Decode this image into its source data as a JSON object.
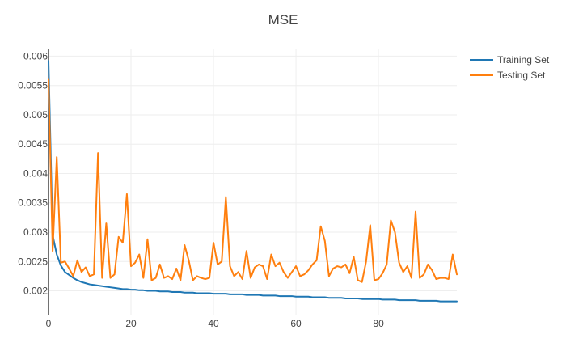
{
  "chart_data": {
    "type": "line",
    "title": "MSE",
    "xlabel": "",
    "ylabel": "",
    "xlim": [
      0,
      99
    ],
    "ylim": [
      0.00158,
      0.00613
    ],
    "x_ticks": [
      0,
      20,
      40,
      60,
      80
    ],
    "y_ticks": [
      0.002,
      0.0025,
      0.003,
      0.0035,
      0.004,
      0.0045,
      0.005,
      0.0055,
      0.006
    ],
    "y_tick_labels": [
      "0.002",
      "0.0025",
      "0.003",
      "0.0035",
      "0.004",
      "0.0045",
      "0.005",
      "0.0055",
      "0.006"
    ],
    "grid": true,
    "legend_position": "top-right",
    "series": [
      {
        "name": "Training Set",
        "color": "#1f77b4",
        "values": [
          0.00592,
          0.00295,
          0.00262,
          0.00243,
          0.00232,
          0.00227,
          0.00222,
          0.00218,
          0.00215,
          0.00213,
          0.00211,
          0.0021,
          0.00209,
          0.00208,
          0.00207,
          0.00206,
          0.00205,
          0.00204,
          0.00203,
          0.00203,
          0.00202,
          0.00202,
          0.00201,
          0.00201,
          0.002,
          0.002,
          0.002,
          0.00199,
          0.00199,
          0.00199,
          0.00198,
          0.00198,
          0.00198,
          0.00197,
          0.00197,
          0.00197,
          0.00196,
          0.00196,
          0.00196,
          0.00196,
          0.00195,
          0.00195,
          0.00195,
          0.00195,
          0.00194,
          0.00194,
          0.00194,
          0.00194,
          0.00193,
          0.00193,
          0.00193,
          0.00193,
          0.00192,
          0.00192,
          0.00192,
          0.00192,
          0.00191,
          0.00191,
          0.00191,
          0.00191,
          0.0019,
          0.0019,
          0.0019,
          0.0019,
          0.00189,
          0.00189,
          0.00189,
          0.00189,
          0.00188,
          0.00188,
          0.00188,
          0.00188,
          0.00187,
          0.00187,
          0.00187,
          0.00187,
          0.00186,
          0.00186,
          0.00186,
          0.00186,
          0.00186,
          0.00185,
          0.00185,
          0.00185,
          0.00185,
          0.00184,
          0.00184,
          0.00184,
          0.00184,
          0.00184,
          0.00183,
          0.00183,
          0.00183,
          0.00183,
          0.00183,
          0.00182,
          0.00182,
          0.00182,
          0.00182,
          0.00182
        ]
      },
      {
        "name": "Testing Set",
        "color": "#ff7f0e",
        "values": [
          0.0056,
          0.00268,
          0.00428,
          0.00248,
          0.0025,
          0.00238,
          0.00225,
          0.00252,
          0.00232,
          0.0024,
          0.00225,
          0.00228,
          0.00435,
          0.00222,
          0.00315,
          0.00222,
          0.00228,
          0.00292,
          0.00282,
          0.00365,
          0.00242,
          0.00248,
          0.00262,
          0.00222,
          0.00288,
          0.00218,
          0.00222,
          0.00245,
          0.00222,
          0.00225,
          0.0022,
          0.00238,
          0.00218,
          0.00278,
          0.00252,
          0.00218,
          0.00225,
          0.00222,
          0.0022,
          0.00222,
          0.00282,
          0.00245,
          0.0025,
          0.0036,
          0.00242,
          0.00225,
          0.00232,
          0.0022,
          0.00268,
          0.00222,
          0.0024,
          0.00245,
          0.00242,
          0.0022,
          0.00262,
          0.00242,
          0.00248,
          0.00232,
          0.00222,
          0.00232,
          0.00242,
          0.00225,
          0.00228,
          0.00235,
          0.00245,
          0.00252,
          0.0031,
          0.00285,
          0.00225,
          0.00238,
          0.00242,
          0.0024,
          0.00245,
          0.0023,
          0.00258,
          0.00218,
          0.00215,
          0.0025,
          0.00312,
          0.00218,
          0.0022,
          0.0023,
          0.00245,
          0.0032,
          0.003,
          0.00248,
          0.00232,
          0.00242,
          0.00222,
          0.00335,
          0.00222,
          0.00228,
          0.00245,
          0.00235,
          0.0022,
          0.00222,
          0.00222,
          0.0022,
          0.00262,
          0.00228
        ]
      }
    ]
  }
}
